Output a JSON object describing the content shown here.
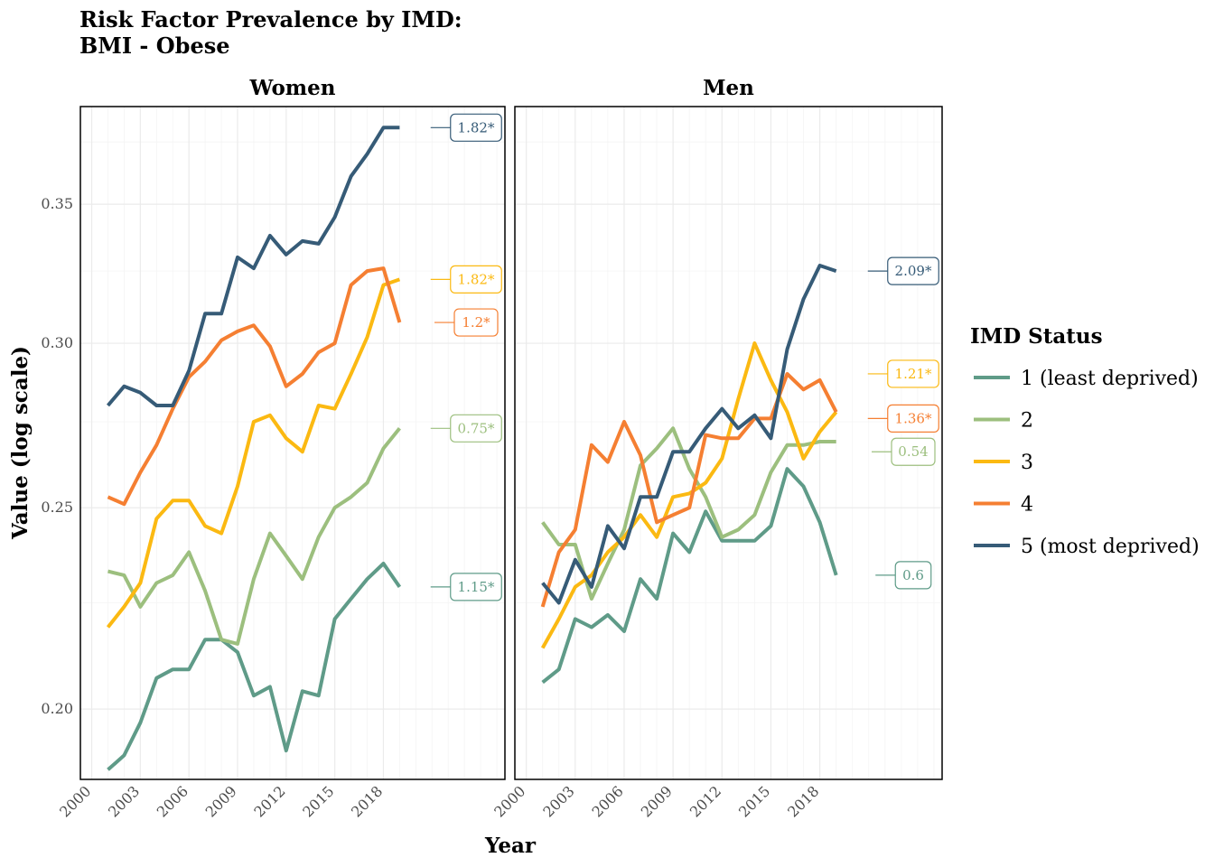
{
  "chart_data": {
    "type": "line",
    "title_lines": [
      "Risk Factor Prevalence by IMD:",
      "BMI - Obese"
    ],
    "xlabel": "Year",
    "ylabel": "Value (log scale)",
    "y_scale": "log",
    "ylim": [
      0.185,
      0.39
    ],
    "y_ticks": [
      0.2,
      0.25,
      0.3,
      0.35
    ],
    "y_tick_labels": [
      "0.20",
      "0.25",
      "0.30",
      "0.35"
    ],
    "xlim": [
      1999.3,
      2025.5
    ],
    "x_ticks": [
      2000,
      2003,
      2006,
      2009,
      2012,
      2015,
      2018
    ],
    "x_tick_labels": [
      "2000",
      "2003",
      "2006",
      "2009",
      "2012",
      "2015",
      "2018"
    ],
    "x": [
      2001,
      2002,
      2003,
      2004,
      2005,
      2006,
      2007,
      2008,
      2009,
      2010,
      2011,
      2012,
      2013,
      2014,
      2015,
      2016,
      2017,
      2018,
      2019
    ],
    "legend": {
      "title": "IMD Status",
      "position": "right",
      "entries": [
        "1 (least deprived)",
        "2",
        "3",
        "4",
        "5 (most deprived)"
      ]
    },
    "colors": [
      "#5f9b88",
      "#9cbf7e",
      "#fbb912",
      "#f57f32",
      "#365b77"
    ],
    "grid": true,
    "panels": [
      {
        "name": "Women",
        "series": [
          {
            "group": 1,
            "values": [
              0.187,
              0.19,
              0.197,
              0.207,
              0.209,
              0.209,
              0.216,
              0.216,
              0.213,
              0.203,
              0.205,
              0.191,
              0.204,
              0.203,
              0.221,
              0.226,
              0.231,
              0.235,
              0.229
            ],
            "label": "1.15*",
            "label_y": 0.229
          },
          {
            "group": 2,
            "values": [
              0.233,
              0.232,
              0.224,
              0.23,
              0.232,
              0.238,
              0.228,
              0.216,
              0.215,
              0.231,
              0.243,
              0.237,
              0.231,
              0.242,
              0.25,
              0.253,
              0.257,
              0.267,
              0.273
            ],
            "label": "0.75*",
            "label_y": 0.273
          },
          {
            "group": 3,
            "values": [
              0.219,
              0.224,
              0.23,
              0.247,
              0.252,
              0.252,
              0.245,
              0.243,
              0.256,
              0.275,
              0.277,
              0.27,
              0.266,
              0.28,
              0.279,
              0.29,
              0.302,
              0.32,
              0.322
            ],
            "label": "1.82*",
            "label_y": 0.322
          },
          {
            "group": 4,
            "values": [
              0.253,
              0.251,
              0.26,
              0.268,
              0.279,
              0.289,
              0.294,
              0.301,
              0.304,
              0.306,
              0.299,
              0.286,
              0.29,
              0.297,
              0.3,
              0.32,
              0.325,
              0.326,
              0.307
            ],
            "label": "1.2*",
            "label_y": 0.307
          },
          {
            "group": 5,
            "values": [
              0.28,
              0.286,
              0.284,
              0.28,
              0.28,
              0.291,
              0.31,
              0.31,
              0.33,
              0.326,
              0.338,
              0.331,
              0.336,
              0.335,
              0.345,
              0.361,
              0.37,
              0.381,
              0.381
            ],
            "label": "1.82*",
            "label_y": 0.381
          }
        ]
      },
      {
        "name": "Men",
        "series": [
          {
            "group": 1,
            "values": [
              0.206,
              0.209,
              0.221,
              0.219,
              0.222,
              0.218,
              0.231,
              0.226,
              0.243,
              0.238,
              0.249,
              0.241,
              0.241,
              0.241,
              0.245,
              0.261,
              0.256,
              0.246,
              0.232
            ],
            "label": "0.6",
            "label_y": 0.232
          },
          {
            "group": 2,
            "values": [
              0.246,
              0.24,
              0.24,
              0.226,
              0.235,
              0.244,
              0.262,
              0.267,
              0.273,
              0.261,
              0.253,
              0.242,
              0.244,
              0.248,
              0.26,
              0.268,
              0.268,
              0.269,
              0.269
            ],
            "label": "0.54",
            "label_y": 0.266
          },
          {
            "group": 3,
            "values": [
              0.214,
              0.221,
              0.229,
              0.232,
              0.238,
              0.242,
              0.248,
              0.242,
              0.253,
              0.254,
              0.257,
              0.264,
              0.282,
              0.3,
              0.288,
              0.278,
              0.264,
              0.272,
              0.278
            ],
            "label": "1.21*",
            "label_y": 0.29
          },
          {
            "group": 4,
            "values": [
              0.224,
              0.238,
              0.244,
              0.268,
              0.263,
              0.275,
              0.265,
              0.246,
              0.248,
              0.25,
              0.271,
              0.27,
              0.27,
              0.276,
              0.276,
              0.29,
              0.285,
              0.288,
              0.278
            ],
            "label": "1.36*",
            "label_y": 0.276
          },
          {
            "group": 5,
            "values": [
              0.23,
              0.225,
              0.236,
              0.229,
              0.245,
              0.239,
              0.253,
              0.253,
              0.266,
              0.266,
              0.273,
              0.279,
              0.273,
              0.277,
              0.27,
              0.298,
              0.315,
              0.327,
              0.325
            ],
            "label": "2.09*",
            "label_y": 0.325
          }
        ]
      }
    ]
  }
}
